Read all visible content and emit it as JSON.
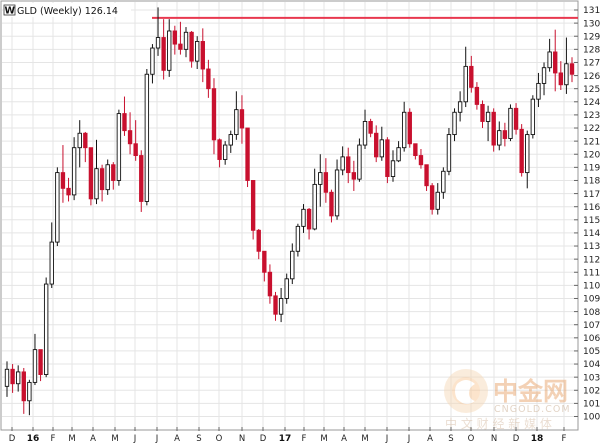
{
  "chart_data": {
    "type": "candlestick",
    "title": "GLD (Weekly) 126.14",
    "title_symbol": "W",
    "ylim": [
      100,
      131.5
    ],
    "y_ticks": [
      100,
      101,
      102,
      103,
      104,
      105,
      106,
      107,
      108,
      109,
      110,
      111,
      112,
      113,
      114,
      115,
      116,
      117,
      118,
      119,
      120,
      121,
      122,
      123,
      124,
      125,
      126,
      127,
      128,
      129,
      130,
      131
    ],
    "x_labels": [
      "D",
      "16",
      "F",
      "M",
      "A",
      "M",
      "J",
      "J",
      "A",
      "S",
      "O",
      "N",
      "D",
      "17",
      "F",
      "M",
      "A",
      "M",
      "J",
      "J",
      "A",
      "S",
      "O",
      "N",
      "D",
      "18",
      "F"
    ],
    "year_labels": [
      "16",
      "17",
      "18"
    ],
    "resistance_level": 130.4,
    "grid": true,
    "colors": {
      "up": "#ffffff",
      "down": "#c8102e",
      "outline": "#111111",
      "resistance": "#e8384f",
      "grid": "#e5e5e5"
    },
    "candles": [
      [
        102.3,
        104.2,
        101.5,
        103.6
      ],
      [
        103.6,
        104.0,
        101.8,
        102.5
      ],
      [
        102.5,
        103.9,
        101.9,
        103.4
      ],
      [
        103.4,
        103.7,
        100.2,
        101.2
      ],
      [
        101.2,
        102.8,
        100.1,
        102.6
      ],
      [
        102.6,
        106.3,
        102.4,
        105.1
      ],
      [
        105.1,
        104.9,
        102.7,
        103.2
      ],
      [
        103.2,
        110.6,
        103.0,
        110.1
      ],
      [
        110.1,
        114.8,
        109.8,
        113.3
      ],
      [
        113.3,
        119.0,
        113.0,
        118.6
      ],
      [
        118.6,
        120.7,
        116.3,
        117.4
      ],
      [
        117.4,
        118.2,
        116.4,
        116.9
      ],
      [
        116.9,
        121.3,
        116.5,
        120.5
      ],
      [
        120.5,
        122.6,
        119.0,
        121.6
      ],
      [
        121.6,
        121.7,
        119.4,
        120.5
      ],
      [
        120.5,
        120.5,
        116.1,
        116.6
      ],
      [
        116.6,
        121.1,
        116.2,
        118.9
      ],
      [
        118.9,
        119.2,
        116.4,
        117.3
      ],
      [
        117.3,
        119.6,
        116.9,
        119.2
      ],
      [
        119.2,
        119.4,
        117.3,
        118.0
      ],
      [
        118.0,
        123.4,
        117.6,
        123.1
      ],
      [
        123.1,
        124.4,
        121.4,
        121.8
      ],
      [
        121.8,
        123.2,
        120.0,
        120.8
      ],
      [
        120.8,
        122.6,
        119.5,
        119.9
      ],
      [
        119.9,
        120.3,
        115.6,
        116.4
      ],
      [
        116.4,
        126.5,
        116.1,
        126.1
      ],
      [
        126.1,
        128.4,
        125.4,
        128.1
      ],
      [
        128.1,
        131.2,
        127.5,
        128.9
      ],
      [
        128.9,
        130.3,
        125.7,
        126.4
      ],
      [
        126.4,
        130.3,
        125.9,
        129.4
      ],
      [
        129.4,
        129.8,
        127.6,
        128.4
      ],
      [
        128.4,
        130.1,
        127.6,
        128.0
      ],
      [
        128.0,
        129.7,
        127.4,
        129.3
      ],
      [
        129.3,
        129.4,
        126.6,
        127.1
      ],
      [
        127.1,
        129.0,
        126.5,
        128.6
      ],
      [
        128.6,
        129.6,
        125.5,
        126.5
      ],
      [
        126.5,
        127.2,
        124.3,
        125.0
      ],
      [
        125.0,
        125.8,
        120.0,
        121.1
      ],
      [
        121.1,
        121.2,
        119.0,
        119.6
      ],
      [
        119.6,
        121.0,
        119.2,
        120.7
      ],
      [
        120.7,
        121.8,
        120.1,
        121.5
      ],
      [
        121.5,
        124.8,
        121.1,
        123.4
      ],
      [
        123.4,
        124.5,
        120.8,
        122.0
      ],
      [
        122.0,
        121.8,
        117.5,
        118.0
      ],
      [
        118.0,
        117.8,
        113.5,
        114.2
      ],
      [
        114.2,
        114.3,
        112.0,
        112.6
      ],
      [
        112.6,
        112.5,
        110.3,
        111.0
      ],
      [
        111.0,
        111.6,
        108.6,
        109.2
      ],
      [
        109.2,
        109.5,
        107.3,
        107.8
      ],
      [
        107.8,
        109.8,
        107.2,
        109.0
      ],
      [
        109.0,
        110.9,
        108.6,
        110.5
      ],
      [
        110.5,
        113.2,
        110.1,
        112.6
      ],
      [
        112.6,
        114.7,
        112.2,
        114.5
      ],
      [
        114.5,
        116.2,
        114.0,
        115.8
      ],
      [
        115.8,
        115.9,
        113.5,
        114.3
      ],
      [
        114.3,
        118.9,
        114.2,
        117.7
      ],
      [
        117.7,
        120.0,
        116.0,
        118.6
      ],
      [
        118.6,
        119.7,
        116.3,
        117.1
      ],
      [
        117.1,
        117.3,
        114.8,
        115.3
      ],
      [
        115.3,
        119.6,
        115.0,
        118.8
      ],
      [
        118.8,
        120.6,
        118.4,
        119.8
      ],
      [
        119.8,
        120.5,
        117.8,
        118.6
      ],
      [
        118.6,
        119.5,
        117.2,
        118.1
      ],
      [
        118.1,
        121.2,
        117.9,
        120.7
      ],
      [
        120.7,
        123.4,
        120.4,
        122.5
      ],
      [
        122.5,
        122.7,
        121.3,
        121.6
      ],
      [
        121.6,
        122.2,
        119.4,
        119.8
      ],
      [
        119.8,
        122.1,
        119.5,
        121.1
      ],
      [
        121.1,
        121.3,
        117.8,
        118.3
      ],
      [
        118.3,
        120.3,
        117.9,
        119.5
      ],
      [
        119.5,
        121.0,
        119.4,
        120.5
      ],
      [
        120.5,
        124.0,
        120.2,
        123.2
      ],
      [
        123.2,
        123.5,
        120.5,
        120.8
      ],
      [
        120.8,
        120.8,
        119.6,
        119.9
      ],
      [
        119.9,
        120.4,
        118.9,
        119.2
      ],
      [
        119.2,
        118.9,
        117.2,
        117.6
      ],
      [
        117.6,
        117.8,
        115.4,
        115.8
      ],
      [
        115.8,
        117.8,
        115.4,
        117.1
      ],
      [
        117.1,
        119.0,
        116.6,
        118.7
      ],
      [
        118.7,
        122.0,
        118.4,
        121.5
      ],
      [
        121.5,
        123.5,
        121.0,
        123.2
      ],
      [
        123.2,
        124.8,
        122.5,
        124.0
      ],
      [
        124.0,
        128.2,
        123.6,
        126.7
      ],
      [
        126.7,
        127.5,
        124.7,
        125.1
      ],
      [
        125.1,
        125.5,
        123.4,
        123.8
      ],
      [
        123.8,
        124.1,
        122.0,
        122.5
      ],
      [
        122.5,
        123.7,
        121.0,
        123.2
      ],
      [
        123.2,
        123.5,
        120.2,
        120.7
      ],
      [
        120.7,
        122.5,
        120.3,
        121.8
      ],
      [
        121.8,
        122.4,
        120.6,
        121.2
      ],
      [
        121.2,
        123.8,
        121.0,
        123.5
      ],
      [
        123.5,
        123.9,
        121.5,
        121.9
      ],
      [
        121.9,
        122.3,
        118.3,
        118.6
      ],
      [
        118.6,
        121.8,
        117.4,
        121.5
      ],
      [
        121.5,
        124.5,
        121.2,
        124.2
      ],
      [
        124.2,
        126.2,
        123.6,
        125.4
      ],
      [
        125.4,
        127.0,
        124.5,
        126.6
      ],
      [
        126.6,
        128.8,
        126.3,
        127.8
      ],
      [
        127.8,
        129.5,
        124.8,
        126.2
      ],
      [
        126.2,
        127.1,
        124.9,
        125.3
      ],
      [
        125.3,
        128.9,
        124.6,
        126.9
      ],
      [
        126.9,
        127.4,
        125.5,
        126.1
      ]
    ]
  },
  "watermark": {
    "brand": "中金网",
    "url": "CNGOLD.COM",
    "caption": "中 文 财 经 新 媒 体"
  }
}
